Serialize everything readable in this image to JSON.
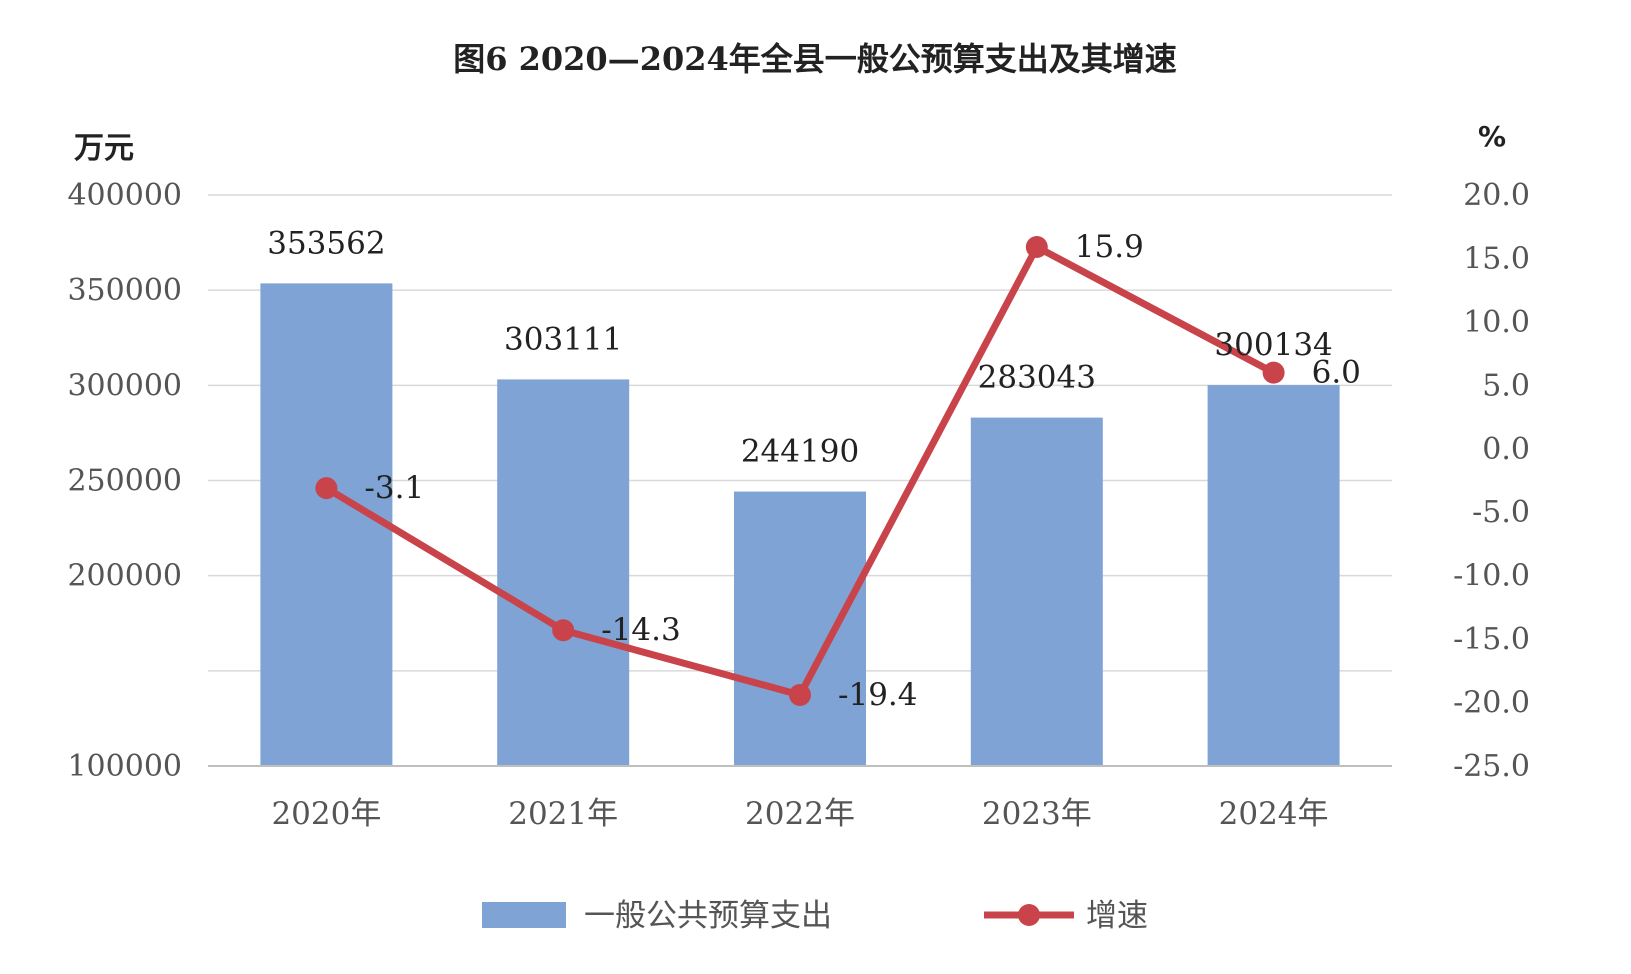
{
  "chart_data": {
    "type": "bar",
    "title": "图6  2020—2024年全县一般公预算支出及其增速",
    "ylabel_left": "万元",
    "ylabel_right": "%",
    "categories": [
      "2020年",
      "2021年",
      "2022年",
      "2023年",
      "2024年"
    ],
    "left_axis": {
      "ylim": [
        100000,
        400000
      ],
      "ticks": [
        "400000",
        "350000",
        "300000",
        "250000",
        "200000",
        "",
        "100000"
      ],
      "tick_values": [
        400000,
        350000,
        300000,
        250000,
        200000,
        150000,
        100000
      ]
    },
    "right_axis": {
      "ylim": [
        -25,
        20
      ],
      "ticks": [
        "20.0",
        "15.0",
        "10.0",
        "5.0",
        "0.0",
        "-5.0",
        "-10.0",
        "-15.0",
        "-20.0",
        "-25.0"
      ],
      "tick_values": [
        20,
        15,
        10,
        5,
        0,
        -5,
        -10,
        -15,
        -20,
        -25
      ]
    },
    "series": [
      {
        "name": "一般公共预算支出",
        "type": "bar",
        "axis": "left",
        "values": [
          353562,
          303111,
          244190,
          283043,
          300134
        ],
        "labels": [
          "353562",
          "303111",
          "244190",
          "283043",
          "300134"
        ],
        "color": "#7ea3d4"
      },
      {
        "name": "增速",
        "type": "line",
        "axis": "right",
        "values": [
          -3.1,
          -14.3,
          -19.4,
          15.9,
          6.0
        ],
        "labels": [
          "-3.1",
          "-14.3",
          "-19.4",
          "15.9",
          "6.0"
        ],
        "color": "#c8444a"
      }
    ],
    "grid": true,
    "legend": "bottom"
  }
}
